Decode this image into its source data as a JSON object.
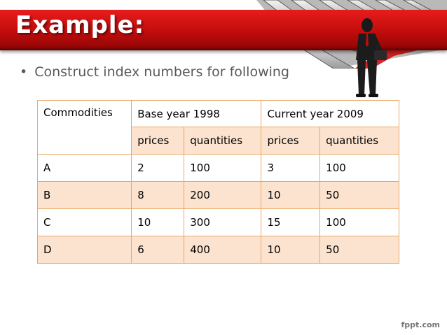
{
  "slide": {
    "title": "Example:",
    "bullet_text": "Construct index numbers for following",
    "bullet_glyph": "•",
    "accent_color": "#c10c0c",
    "footer_text": "fppt.com"
  },
  "table": {
    "header": {
      "commodities": "Commodities",
      "base_year": "Base year 1998",
      "current_year": "Current year 2009"
    },
    "subheader": [
      "prices",
      "quantities",
      "prices",
      "quantities"
    ],
    "rows": [
      {
        "commodity": "A",
        "base_price": "2",
        "base_qty": "100",
        "cur_price": "3",
        "cur_qty": "100"
      },
      {
        "commodity": "B",
        "base_price": "8",
        "base_qty": "200",
        "cur_price": "10",
        "cur_qty": "50"
      },
      {
        "commodity": "C",
        "base_price": "10",
        "base_qty": "300",
        "cur_price": "15",
        "cur_qty": "100"
      },
      {
        "commodity": "D",
        "base_price": "6",
        "base_qty": "400",
        "cur_price": "10",
        "cur_qty": "50"
      }
    ],
    "border_color": "#e8a96a",
    "highlight_color": "#fbe3cf"
  }
}
